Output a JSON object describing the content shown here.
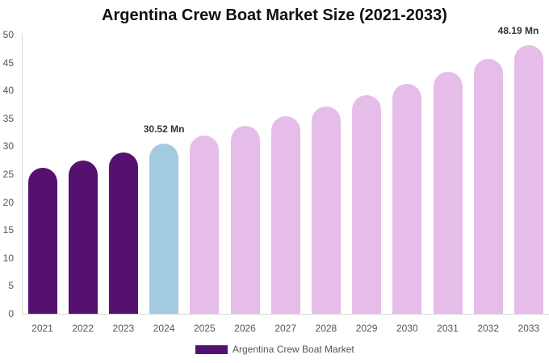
{
  "chart_data": {
    "type": "bar",
    "title": "Argentina Crew Boat Market Size (2021-2033)",
    "xlabel": "",
    "ylabel": "",
    "ylim": [
      0,
      50
    ],
    "yticks": [
      0,
      5,
      10,
      15,
      20,
      25,
      30,
      35,
      40,
      45,
      50
    ],
    "grid": false,
    "legend_position": "bottom",
    "categories": [
      "2021",
      "2022",
      "2023",
      "2024",
      "2025",
      "2026",
      "2027",
      "2028",
      "2029",
      "2030",
      "2031",
      "2032",
      "2033"
    ],
    "series": [
      {
        "name": "Argentina Crew Boat Market",
        "values": [
          26.2,
          27.5,
          28.9,
          30.52,
          32.0,
          33.7,
          35.4,
          37.2,
          39.1,
          41.2,
          43.4,
          45.7,
          48.19
        ]
      }
    ],
    "bar_colors": [
      "#541170",
      "#541170",
      "#541170",
      "#a3cbe0",
      "#e6bde8",
      "#e6bde8",
      "#e6bde8",
      "#e6bde8",
      "#e6bde8",
      "#e6bde8",
      "#e6bde8",
      "#e6bde8",
      "#e6bde8"
    ],
    "annotations": [
      {
        "category": "2024",
        "text": "30.52 Mn"
      },
      {
        "category": "2033",
        "text": "48.19 Mn"
      }
    ]
  },
  "legend": {
    "label": "Argentina Crew Boat Market",
    "color": "#541170"
  }
}
